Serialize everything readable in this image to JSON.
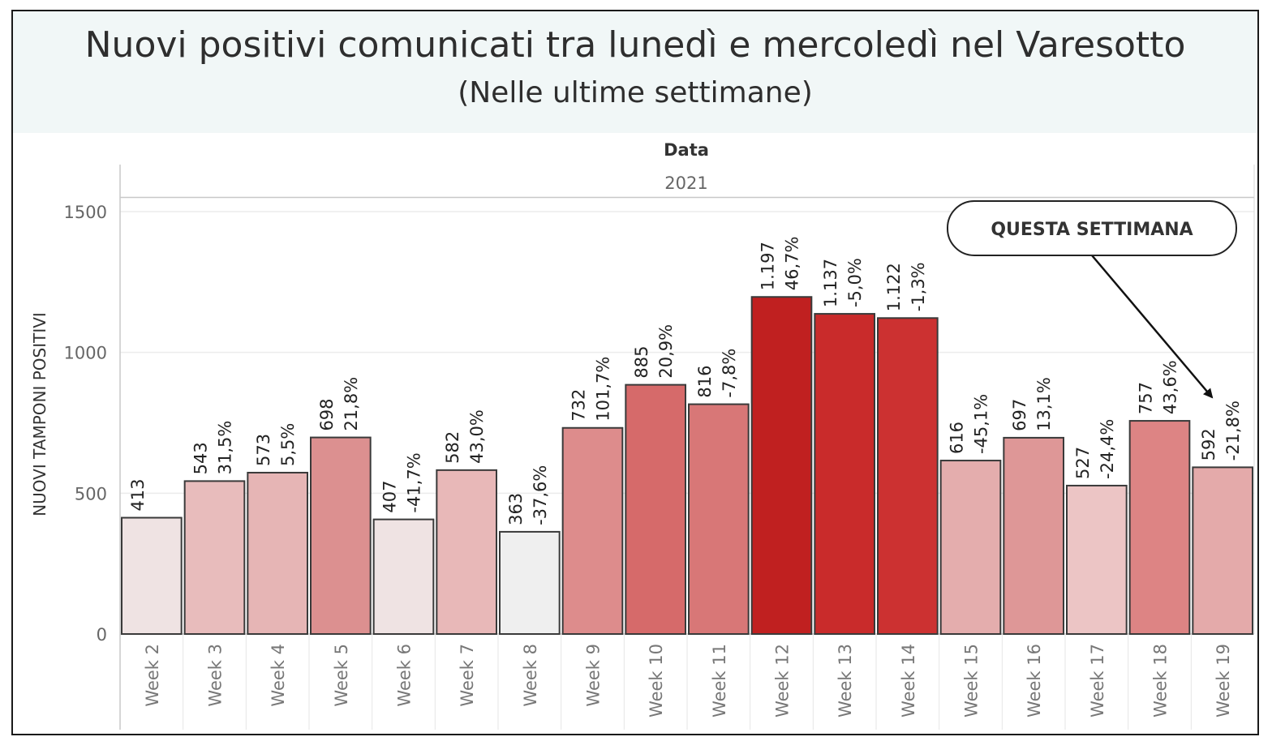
{
  "title": "Nuovi positivi comunicati tra lunedì e mercoledì nel Varesotto",
  "subtitle": "(Nelle ultime settimane)",
  "chart_data": {
    "type": "bar",
    "column_header": "Data",
    "year_label": "2021",
    "ylabel": "NUOVI TAMPONI POSITIVI",
    "xlabel": "",
    "ylim": [
      0,
      1650
    ],
    "yticks": [
      0,
      500,
      1000,
      1500
    ],
    "grid": true,
    "categories": [
      "Week 2",
      "Week 3",
      "Week 4",
      "Week 5",
      "Week 6",
      "Week 7",
      "Week 8",
      "Week 9",
      "Week 10",
      "Week 11",
      "Week 12",
      "Week 13",
      "Week 14",
      "Week 15",
      "Week 16",
      "Week 17",
      "Week 18",
      "Week 19"
    ],
    "values": [
      413,
      543,
      573,
      698,
      407,
      582,
      363,
      732,
      885,
      816,
      1197,
      1137,
      1122,
      616,
      697,
      527,
      757,
      592
    ],
    "value_labels": [
      "413",
      "543",
      "573",
      "698",
      "407",
      "582",
      "363",
      "732",
      "885",
      "816",
      "1.197",
      "1.137",
      "1.122",
      "616",
      "697",
      "527",
      "757",
      "592"
    ],
    "change_labels": [
      "",
      "31,5%",
      "5,5%",
      "21,8%",
      "-41,7%",
      "43,0%",
      "-37,6%",
      "101,7%",
      "20,9%",
      "-7,8%",
      "46,7%",
      "-5,0%",
      "-1,3%",
      "-45,1%",
      "13,1%",
      "-24,4%",
      "43,6%",
      "-21,8%"
    ],
    "colors": [
      "#efe3e3",
      "#e8bcbc",
      "#e6b5b5",
      "#dc9090",
      "#efe3e3",
      "#e8b8b8",
      "#efefef",
      "#dd8c8c",
      "#d66a6a",
      "#d87777",
      "#c02020",
      "#c92b2b",
      "#cc3131",
      "#e4adad",
      "#de9797",
      "#ecc5c5",
      "#dd8484",
      "#e4aaaa"
    ],
    "callout": {
      "text": "QUESTA SETTIMANA",
      "target": "Week 19"
    }
  }
}
